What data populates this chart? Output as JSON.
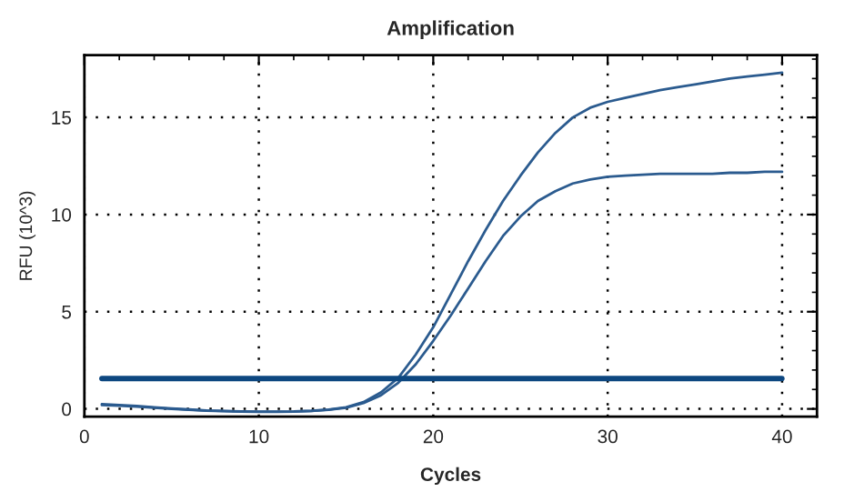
{
  "chart_data": {
    "type": "line",
    "title": "Amplification",
    "xlabel": "Cycles",
    "ylabel": "RFU (10^3)",
    "x": [
      1,
      2,
      3,
      4,
      5,
      6,
      7,
      8,
      9,
      10,
      11,
      12,
      13,
      14,
      15,
      16,
      17,
      18,
      19,
      20,
      21,
      22,
      23,
      24,
      25,
      26,
      27,
      28,
      29,
      30,
      31,
      32,
      33,
      34,
      35,
      36,
      37,
      38,
      39,
      40
    ],
    "series": [
      {
        "color": "#2b5b8f",
        "values": [
          0.25,
          0.2,
          0.15,
          0.08,
          0.02,
          -0.03,
          -0.08,
          -0.11,
          -0.13,
          -0.14,
          -0.14,
          -0.13,
          -0.1,
          -0.04,
          0.08,
          0.35,
          0.85,
          1.6,
          2.8,
          4.2,
          5.9,
          7.6,
          9.2,
          10.7,
          12.0,
          13.2,
          14.2,
          15.0,
          15.5,
          15.8,
          16.0,
          16.2,
          16.4,
          16.55,
          16.7,
          16.85,
          17.0,
          17.1,
          17.2,
          17.3
        ]
      },
      {
        "color": "#2b5b8f",
        "values": [
          0.2,
          0.16,
          0.12,
          0.06,
          0.0,
          -0.05,
          -0.09,
          -0.12,
          -0.14,
          -0.15,
          -0.15,
          -0.14,
          -0.11,
          -0.05,
          0.06,
          0.3,
          0.7,
          1.35,
          2.3,
          3.5,
          4.8,
          6.2,
          7.6,
          8.9,
          9.9,
          10.7,
          11.2,
          11.6,
          11.8,
          11.95,
          12.0,
          12.05,
          12.1,
          12.1,
          12.1,
          12.1,
          12.15,
          12.15,
          12.2,
          12.2
        ]
      }
    ],
    "ref_lines": [
      {
        "axis": "y",
        "value": 1.56,
        "color": "#0d4780",
        "line_style": "solid"
      }
    ],
    "xlim": [
      0,
      42
    ],
    "ylim": [
      -0.4,
      18.2
    ],
    "xticks": [
      0,
      {
        "value": 2,
        "label": null
      },
      {
        "value": 4,
        "label": null
      },
      {
        "value": 6,
        "label": null
      },
      {
        "value": 8,
        "label": null
      },
      10,
      {
        "value": 12,
        "label": null
      },
      {
        "value": 14,
        "label": null
      },
      {
        "value": 16,
        "label": null
      },
      {
        "value": 18,
        "label": null
      },
      20,
      {
        "value": 22,
        "label": null
      },
      {
        "value": 24,
        "label": null
      },
      {
        "value": 26,
        "label": null
      },
      {
        "value": 28,
        "label": null
      },
      30,
      {
        "value": 32,
        "label": null
      },
      {
        "value": 34,
        "label": null
      },
      {
        "value": 36,
        "label": null
      },
      {
        "value": 38,
        "label": null
      },
      40
    ],
    "yticks": [
      0,
      {
        "value": 1,
        "label": null
      },
      {
        "value": 2,
        "label": null
      },
      {
        "value": 3,
        "label": null
      },
      {
        "value": 4,
        "label": null
      },
      5,
      {
        "value": 6,
        "label": null
      },
      {
        "value": 7,
        "label": null
      },
      {
        "value": 8,
        "label": null
      },
      {
        "value": 9,
        "label": null
      },
      10,
      {
        "value": 11,
        "label": null
      },
      {
        "value": 12,
        "label": null
      },
      {
        "value": 13,
        "label": null
      },
      {
        "value": 14,
        "label": null
      },
      15,
      {
        "value": 16,
        "label": null
      },
      {
        "value": 17,
        "label": null
      },
      {
        "value": 18,
        "label": null
      }
    ],
    "grid": true,
    "marker": "none",
    "line_style": "solid"
  }
}
